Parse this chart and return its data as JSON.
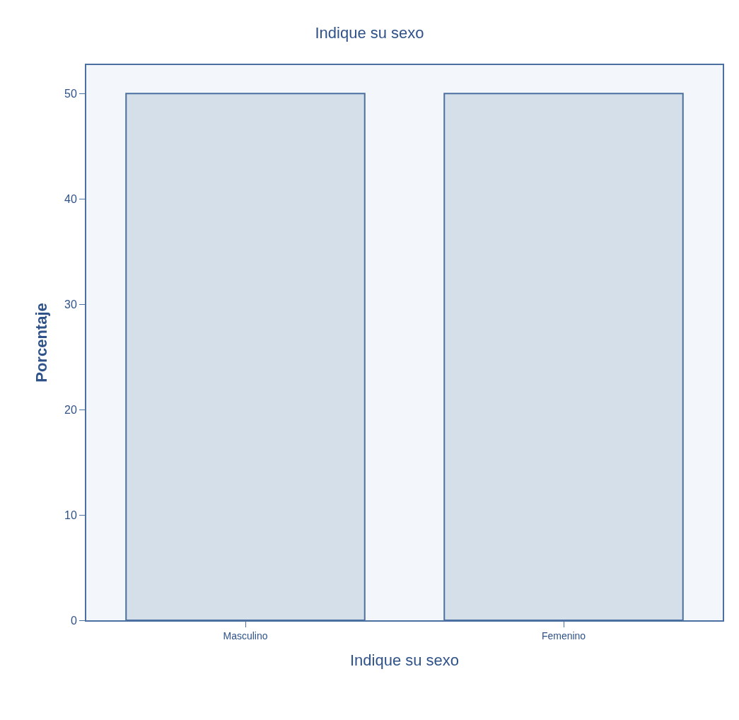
{
  "chart_data": {
    "type": "bar",
    "title": "Indique su sexo",
    "xlabel": "Indique su sexo",
    "ylabel": "Porcentaje",
    "categories": [
      "Masculino",
      "Femenino"
    ],
    "values": [
      50,
      50
    ],
    "color": "#d5dfea",
    "ylim": [
      0,
      52.7
    ],
    "yticks": [
      0,
      10,
      20,
      30,
      40,
      50
    ],
    "grid": false,
    "legend": false
  }
}
